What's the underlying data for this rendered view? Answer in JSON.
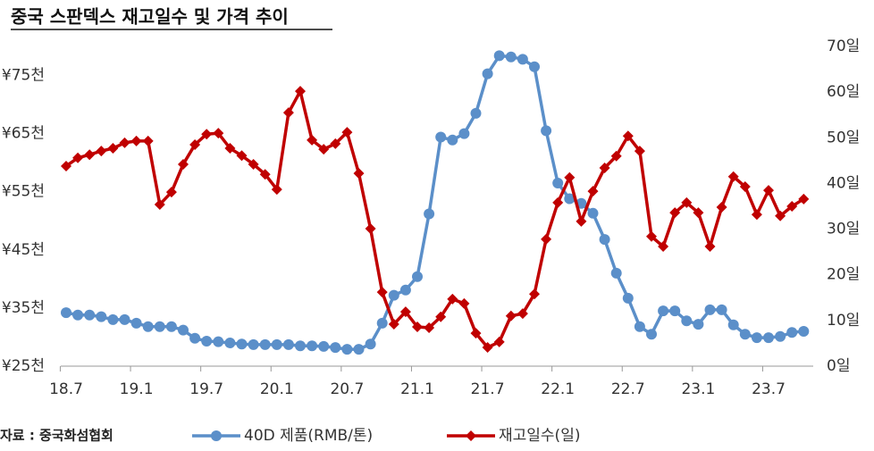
{
  "chart_data": {
    "type": "line",
    "title": "중국 스판덱스 재고일수 및 가격 추이",
    "source": "자료 : 중국화섬협회",
    "categories": [
      "18.7",
      null,
      null,
      null,
      null,
      null,
      "19.1",
      null,
      null,
      null,
      null,
      null,
      "19.7",
      null,
      null,
      null,
      null,
      null,
      "20.1",
      null,
      null,
      null,
      null,
      null,
      "20.7",
      null,
      null,
      null,
      null,
      null,
      "21.1",
      null,
      null,
      null,
      null,
      null,
      "21.7",
      null,
      null,
      null,
      null,
      null,
      "22.1",
      null,
      null,
      null,
      null,
      null,
      "22.7",
      null,
      null,
      null,
      null,
      null,
      "23.1",
      null,
      null,
      null,
      null,
      null,
      "23.7",
      null,
      null,
      null
    ],
    "ylim": [
      25,
      80
    ],
    "yticks": [
      {
        "value": 25,
        "label": "¥25천"
      },
      {
        "value": 35,
        "label": "¥35천"
      },
      {
        "value": 45,
        "label": "¥45천"
      },
      {
        "value": 55,
        "label": "¥55천"
      },
      {
        "value": 65,
        "label": "¥65천"
      },
      {
        "value": 75,
        "label": "¥75천"
      }
    ],
    "y2lim": [
      0,
      70
    ],
    "y2ticks": [
      {
        "value": 0,
        "label": "0일"
      },
      {
        "value": 10,
        "label": "10일"
      },
      {
        "value": 20,
        "label": "20일"
      },
      {
        "value": 30,
        "label": "30일"
      },
      {
        "value": 40,
        "label": "40일"
      },
      {
        "value": 50,
        "label": "50일"
      },
      {
        "value": 60,
        "label": "60일"
      },
      {
        "value": 70,
        "label": "70일"
      }
    ],
    "grid": false,
    "series": [
      {
        "name": "40D 제품(RMB/톤)",
        "color": "#5b8fc9",
        "marker": "circle",
        "axis": "y",
        "values": [
          34.2,
          33.8,
          33.8,
          33.5,
          33,
          33,
          32.4,
          31.8,
          31.8,
          31.8,
          31.2,
          29.8,
          29.3,
          29.2,
          29,
          28.8,
          28.7,
          28.7,
          28.7,
          28.7,
          28.5,
          28.5,
          28.4,
          28.2,
          27.9,
          27.9,
          28.8,
          32.4,
          37.2,
          38.1,
          40.4,
          51.2,
          64.4,
          63.9,
          65,
          68.5,
          75.3,
          78.4,
          78.2,
          77.8,
          76.5,
          65.5,
          56.5,
          53.8,
          53,
          51.3,
          46.8,
          41,
          36.7,
          31.8,
          30.5,
          34.5,
          34.5,
          32.8,
          32.2,
          34.7,
          34.7,
          32.1,
          30.5,
          29.9,
          29.9,
          30.1,
          30.8,
          31
        ]
      },
      {
        "name": "재고일수(일)",
        "color": "#c00000",
        "marker": "diamond",
        "axis": "y2",
        "values": [
          43.8,
          45.6,
          46.3,
          47.1,
          47.7,
          48.9,
          49.3,
          49.3,
          35.4,
          38.1,
          44.2,
          48.5,
          50.8,
          51,
          47.7,
          46.1,
          44.2,
          42,
          38.7,
          55.5,
          60.2,
          49.5,
          47.5,
          48.7,
          51.2,
          42.2,
          30.1,
          16.2,
          9.2,
          11.9,
          8.6,
          8.4,
          10.8,
          14.7,
          13.7,
          7.2,
          4.1,
          5.3,
          11,
          11.5,
          15.8,
          27.8,
          35.8,
          41.3,
          31.7,
          38.3,
          43.4,
          46,
          50.4,
          47.1,
          28.4,
          26.2,
          33.6,
          35.8,
          33.6,
          26.2,
          34.8,
          41.5,
          39.3,
          33.2,
          38.5,
          32.9,
          35,
          36.6
        ]
      }
    ]
  }
}
